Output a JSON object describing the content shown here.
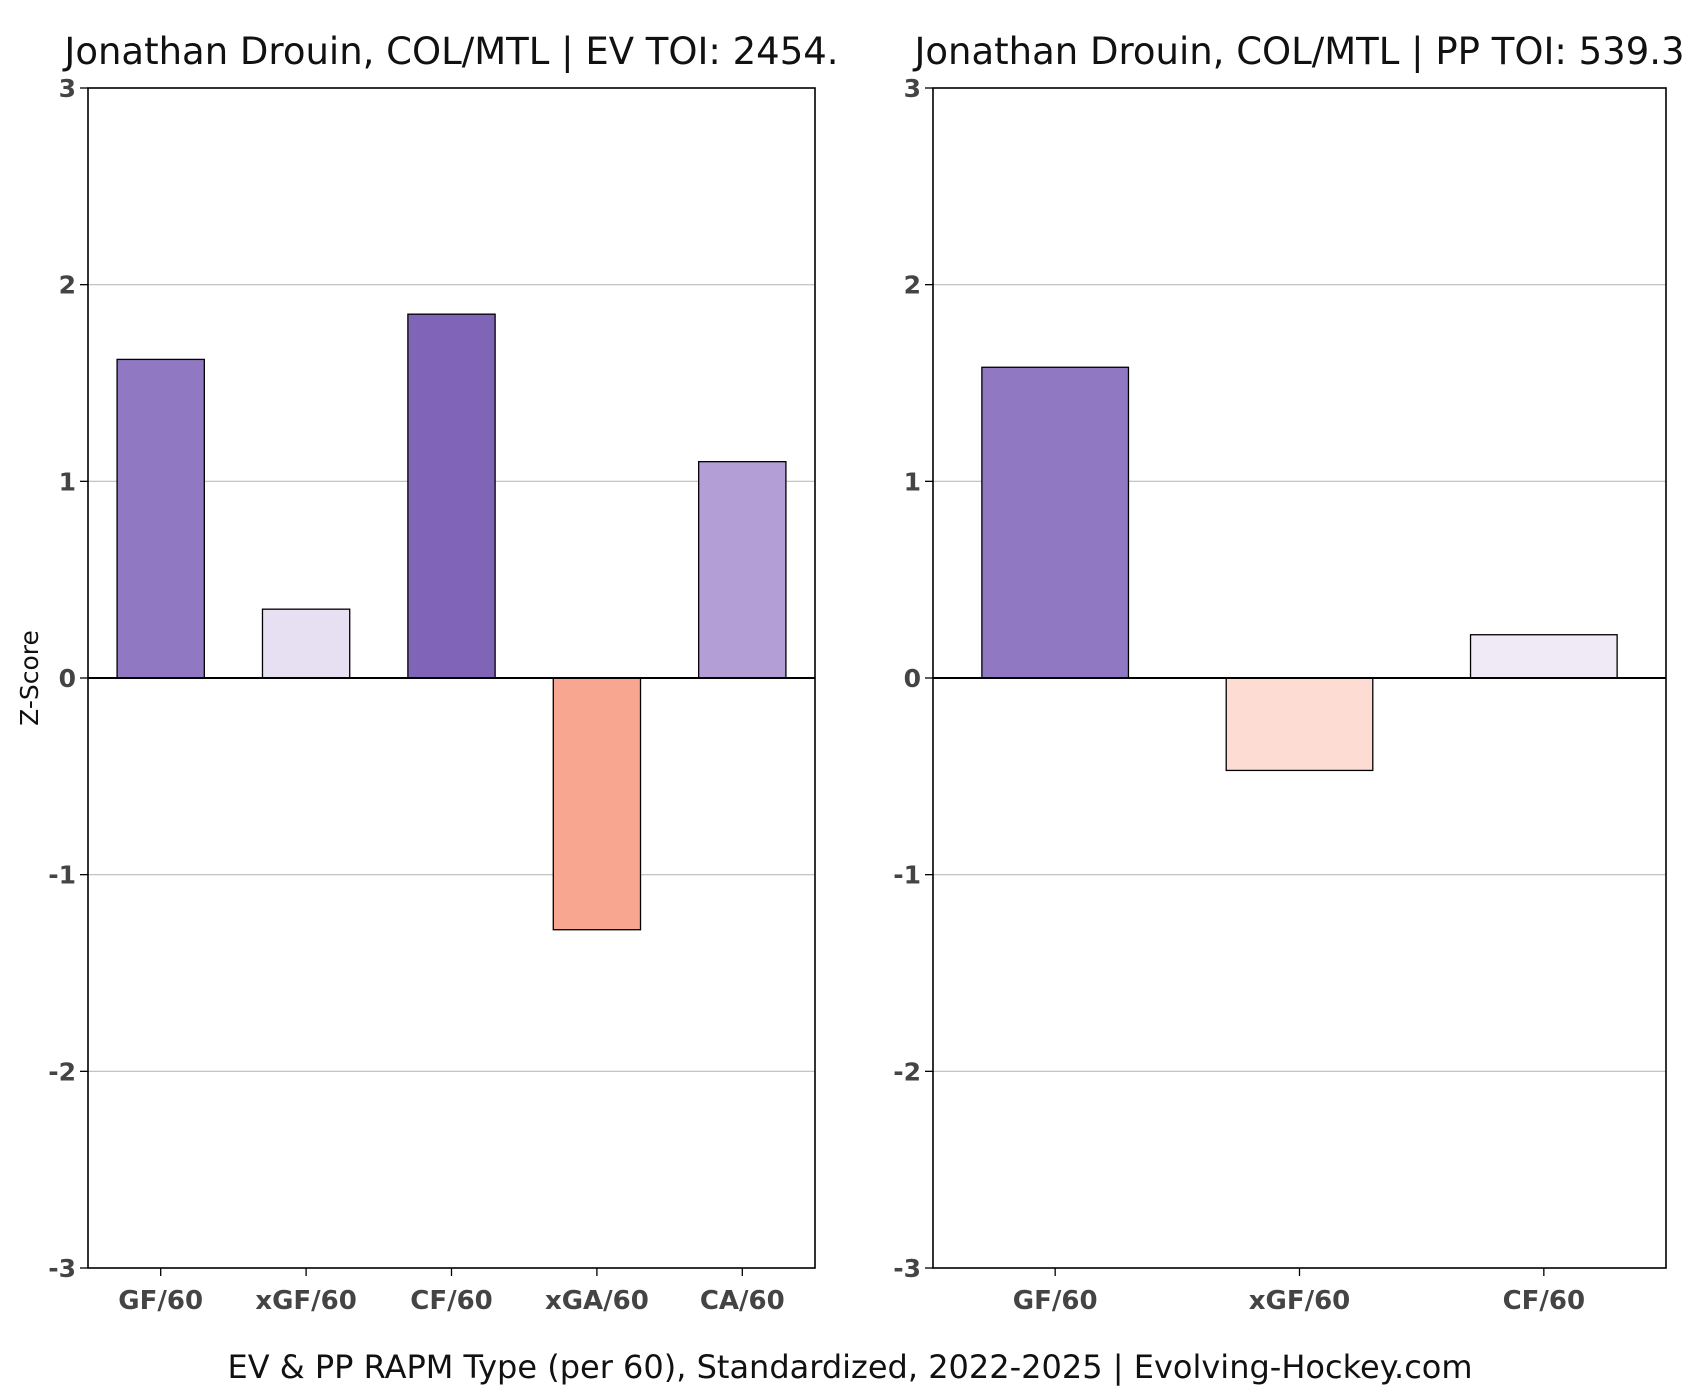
{
  "caption": "EV & PP RAPM Type (per 60), Standardized, 2022-2025    |    Evolving-Hockey.com",
  "chart_data": [
    {
      "type": "bar",
      "title": "Jonathan Drouin, COL/MTL  |  EV TOI: 2454.",
      "ylabel": "Z-Score",
      "ylim": [
        -3,
        3
      ],
      "yticks": [
        -3,
        -2,
        -1,
        0,
        1,
        2,
        3
      ],
      "grid": true,
      "categories": [
        "GF/60",
        "xGF/60",
        "CF/60",
        "xGA/60",
        "CA/60"
      ],
      "values": [
        1.62,
        0.35,
        1.85,
        -1.28,
        1.1
      ],
      "colors": [
        "#9178c2",
        "#e6e0f2",
        "#7f64b8",
        "#f8a690",
        "#b39fd6"
      ]
    },
    {
      "type": "bar",
      "title": "Jonathan Drouin, COL/MTL  |  PP TOI: 539.3",
      "ylabel": "",
      "ylim": [
        -3,
        3
      ],
      "yticks": [
        -3,
        -2,
        -1,
        0,
        1,
        2,
        3
      ],
      "grid": true,
      "categories": [
        "GF/60",
        "xGF/60",
        "CF/60"
      ],
      "values": [
        1.58,
        -0.47,
        0.22
      ],
      "colors": [
        "#9178c2",
        "#fddcd3",
        "#efeaf6"
      ]
    }
  ]
}
